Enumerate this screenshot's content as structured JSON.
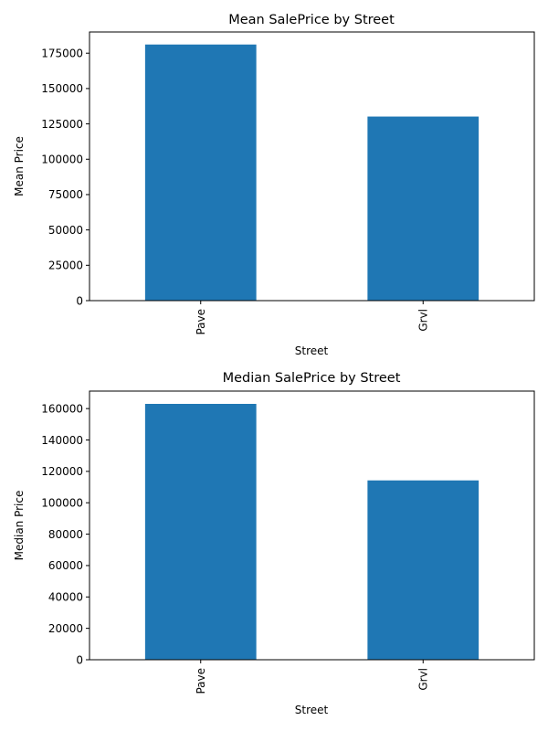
{
  "chart_data": [
    {
      "type": "bar",
      "title": "Mean SalePrice by Street",
      "xlabel": "Street",
      "ylabel": "Mean Price",
      "categories": [
        "Pave",
        "Grvl"
      ],
      "values": [
        181131,
        130190
      ],
      "ylim": [
        0,
        190000
      ],
      "yticks": [
        0,
        25000,
        50000,
        75000,
        100000,
        125000,
        150000,
        175000
      ],
      "ytick_labels": [
        "0",
        "25000",
        "50000",
        "75000",
        "100000",
        "125000",
        "150000",
        "175000"
      ],
      "grid": false,
      "bar_color": "#1f77b4"
    },
    {
      "type": "bar",
      "title": "Median SalePrice by Street",
      "xlabel": "Street",
      "ylabel": "Median Price",
      "categories": [
        "Pave",
        "Grvl"
      ],
      "values": [
        163000,
        114250
      ],
      "ylim": [
        0,
        171150
      ],
      "yticks": [
        0,
        20000,
        40000,
        60000,
        80000,
        100000,
        120000,
        140000,
        160000
      ],
      "ytick_labels": [
        "0",
        "20000",
        "40000",
        "60000",
        "80000",
        "100000",
        "120000",
        "140000",
        "160000"
      ],
      "grid": false,
      "bar_color": "#1f77b4"
    }
  ]
}
